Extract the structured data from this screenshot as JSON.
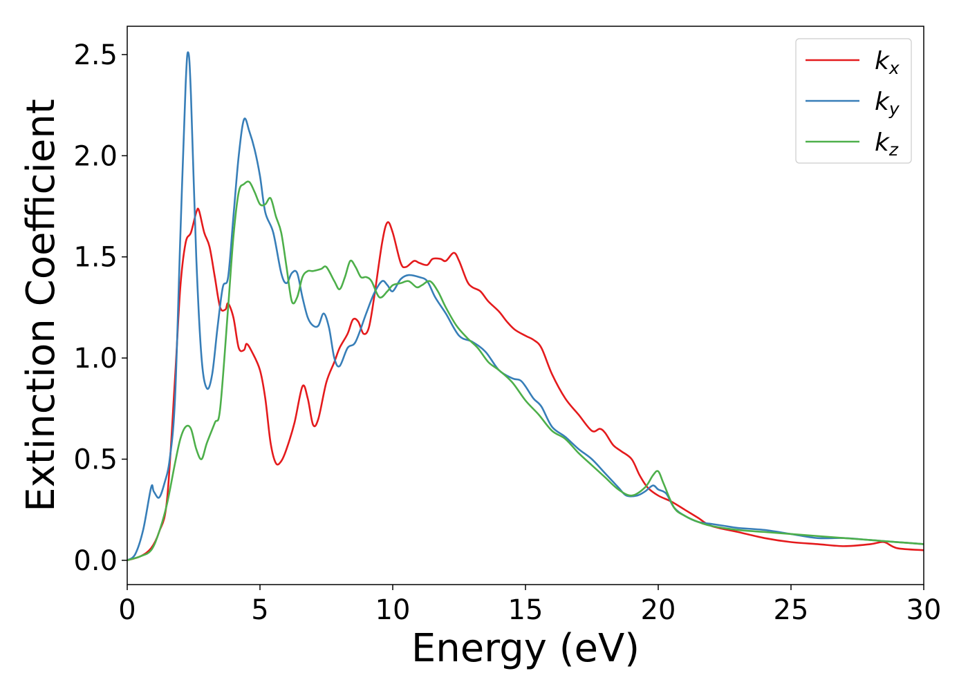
{
  "chart_data": {
    "type": "line",
    "title": "",
    "xlabel": "Energy (eV)",
    "ylabel": "Extinction Coefficient",
    "xlim": [
      0,
      30
    ],
    "ylim": [
      -0.12,
      2.64
    ],
    "xticks": [
      0,
      5,
      10,
      15,
      20,
      25,
      30
    ],
    "yticks": [
      0.0,
      0.5,
      1.0,
      1.5,
      2.0,
      2.5
    ],
    "grid": false,
    "legend_position": "top-right",
    "series": [
      {
        "name": "k_x",
        "name_base": "k",
        "name_sub": "x",
        "color": "#e41a1c",
        "points": [
          [
            0,
            0.0
          ],
          [
            0.5,
            0.02
          ],
          [
            0.9,
            0.06
          ],
          [
            1.2,
            0.14
          ],
          [
            1.5,
            0.3
          ],
          [
            1.8,
            0.9
          ],
          [
            2.0,
            1.35
          ],
          [
            2.2,
            1.57
          ],
          [
            2.4,
            1.62
          ],
          [
            2.6,
            1.72
          ],
          [
            2.7,
            1.73
          ],
          [
            2.9,
            1.62
          ],
          [
            3.1,
            1.55
          ],
          [
            3.3,
            1.4
          ],
          [
            3.5,
            1.25
          ],
          [
            3.7,
            1.24
          ],
          [
            3.8,
            1.27
          ],
          [
            4.0,
            1.2
          ],
          [
            4.2,
            1.05
          ],
          [
            4.4,
            1.04
          ],
          [
            4.5,
            1.07
          ],
          [
            4.7,
            1.03
          ],
          [
            5.0,
            0.94
          ],
          [
            5.2,
            0.8
          ],
          [
            5.4,
            0.58
          ],
          [
            5.6,
            0.48
          ],
          [
            5.8,
            0.49
          ],
          [
            6.0,
            0.55
          ],
          [
            6.3,
            0.68
          ],
          [
            6.6,
            0.86
          ],
          [
            6.8,
            0.8
          ],
          [
            7.0,
            0.67
          ],
          [
            7.2,
            0.7
          ],
          [
            7.5,
            0.88
          ],
          [
            7.8,
            0.98
          ],
          [
            8.0,
            1.05
          ],
          [
            8.3,
            1.12
          ],
          [
            8.5,
            1.19
          ],
          [
            8.7,
            1.18
          ],
          [
            8.9,
            1.12
          ],
          [
            9.1,
            1.15
          ],
          [
            9.3,
            1.3
          ],
          [
            9.6,
            1.57
          ],
          [
            9.8,
            1.67
          ],
          [
            10.0,
            1.62
          ],
          [
            10.3,
            1.47
          ],
          [
            10.5,
            1.45
          ],
          [
            10.8,
            1.48
          ],
          [
            11.0,
            1.47
          ],
          [
            11.3,
            1.46
          ],
          [
            11.5,
            1.49
          ],
          [
            11.8,
            1.49
          ],
          [
            12.0,
            1.48
          ],
          [
            12.3,
            1.52
          ],
          [
            12.5,
            1.48
          ],
          [
            12.8,
            1.38
          ],
          [
            13.0,
            1.35
          ],
          [
            13.3,
            1.33
          ],
          [
            13.6,
            1.28
          ],
          [
            14.0,
            1.23
          ],
          [
            14.3,
            1.18
          ],
          [
            14.6,
            1.14
          ],
          [
            15.0,
            1.11
          ],
          [
            15.3,
            1.09
          ],
          [
            15.6,
            1.05
          ],
          [
            16.0,
            0.92
          ],
          [
            16.5,
            0.8
          ],
          [
            17.0,
            0.72
          ],
          [
            17.5,
            0.64
          ],
          [
            17.8,
            0.65
          ],
          [
            18.0,
            0.63
          ],
          [
            18.3,
            0.57
          ],
          [
            18.6,
            0.54
          ],
          [
            19.0,
            0.5
          ],
          [
            19.3,
            0.42
          ],
          [
            19.6,
            0.36
          ],
          [
            20.0,
            0.32
          ],
          [
            20.5,
            0.29
          ],
          [
            21.0,
            0.25
          ],
          [
            21.5,
            0.21
          ],
          [
            22.0,
            0.17
          ],
          [
            23.0,
            0.14
          ],
          [
            24.0,
            0.11
          ],
          [
            25.0,
            0.09
          ],
          [
            26.0,
            0.08
          ],
          [
            27.0,
            0.07
          ],
          [
            28.0,
            0.08
          ],
          [
            28.5,
            0.09
          ],
          [
            29.0,
            0.06
          ],
          [
            30.0,
            0.05
          ]
        ]
      },
      {
        "name": "k_y",
        "name_base": "k",
        "name_sub": "y",
        "color": "#377eb8",
        "points": [
          [
            0,
            0.0
          ],
          [
            0.3,
            0.03
          ],
          [
            0.6,
            0.15
          ],
          [
            0.9,
            0.36
          ],
          [
            1.0,
            0.34
          ],
          [
            1.2,
            0.31
          ],
          [
            1.4,
            0.38
          ],
          [
            1.6,
            0.5
          ],
          [
            1.8,
            0.8
          ],
          [
            2.0,
            1.6
          ],
          [
            2.2,
            2.35
          ],
          [
            2.3,
            2.51
          ],
          [
            2.4,
            2.3
          ],
          [
            2.6,
            1.5
          ],
          [
            2.8,
            1.0
          ],
          [
            3.0,
            0.85
          ],
          [
            3.2,
            0.92
          ],
          [
            3.4,
            1.15
          ],
          [
            3.6,
            1.35
          ],
          [
            3.8,
            1.4
          ],
          [
            4.0,
            1.7
          ],
          [
            4.2,
            2.0
          ],
          [
            4.4,
            2.18
          ],
          [
            4.6,
            2.12
          ],
          [
            4.8,
            2.03
          ],
          [
            5.0,
            1.9
          ],
          [
            5.2,
            1.72
          ],
          [
            5.5,
            1.62
          ],
          [
            5.8,
            1.42
          ],
          [
            6.0,
            1.37
          ],
          [
            6.2,
            1.42
          ],
          [
            6.4,
            1.42
          ],
          [
            6.6,
            1.3
          ],
          [
            6.8,
            1.2
          ],
          [
            7.0,
            1.16
          ],
          [
            7.2,
            1.16
          ],
          [
            7.4,
            1.22
          ],
          [
            7.6,
            1.15
          ],
          [
            7.8,
            1.0
          ],
          [
            8.0,
            0.96
          ],
          [
            8.3,
            1.05
          ],
          [
            8.6,
            1.08
          ],
          [
            9.0,
            1.22
          ],
          [
            9.3,
            1.32
          ],
          [
            9.6,
            1.38
          ],
          [
            9.8,
            1.36
          ],
          [
            10.0,
            1.33
          ],
          [
            10.3,
            1.39
          ],
          [
            10.6,
            1.41
          ],
          [
            11.0,
            1.4
          ],
          [
            11.3,
            1.38
          ],
          [
            11.6,
            1.3
          ],
          [
            12.0,
            1.22
          ],
          [
            12.5,
            1.11
          ],
          [
            13.0,
            1.08
          ],
          [
            13.5,
            1.03
          ],
          [
            14.0,
            0.94
          ],
          [
            14.5,
            0.9
          ],
          [
            14.8,
            0.89
          ],
          [
            15.0,
            0.86
          ],
          [
            15.3,
            0.8
          ],
          [
            15.6,
            0.76
          ],
          [
            16.0,
            0.66
          ],
          [
            16.5,
            0.61
          ],
          [
            17.0,
            0.55
          ],
          [
            17.5,
            0.5
          ],
          [
            18.0,
            0.43
          ],
          [
            18.5,
            0.36
          ],
          [
            18.8,
            0.32
          ],
          [
            19.2,
            0.32
          ],
          [
            19.5,
            0.34
          ],
          [
            19.8,
            0.37
          ],
          [
            20.0,
            0.35
          ],
          [
            20.3,
            0.33
          ],
          [
            20.6,
            0.26
          ],
          [
            21.0,
            0.22
          ],
          [
            21.5,
            0.19
          ],
          [
            22.0,
            0.18
          ],
          [
            22.5,
            0.17
          ],
          [
            23.0,
            0.16
          ],
          [
            24.0,
            0.15
          ],
          [
            25.0,
            0.13
          ],
          [
            26.0,
            0.11
          ],
          [
            27.0,
            0.11
          ],
          [
            28.0,
            0.1
          ],
          [
            29.0,
            0.09
          ],
          [
            30.0,
            0.08
          ]
        ]
      },
      {
        "name": "k_z",
        "name_base": "k",
        "name_sub": "z",
        "color": "#4daf4a",
        "points": [
          [
            0,
            0.0
          ],
          [
            0.5,
            0.02
          ],
          [
            0.9,
            0.05
          ],
          [
            1.2,
            0.14
          ],
          [
            1.5,
            0.28
          ],
          [
            1.8,
            0.48
          ],
          [
            2.0,
            0.6
          ],
          [
            2.2,
            0.66
          ],
          [
            2.4,
            0.65
          ],
          [
            2.6,
            0.55
          ],
          [
            2.8,
            0.5
          ],
          [
            3.0,
            0.58
          ],
          [
            3.3,
            0.68
          ],
          [
            3.5,
            0.75
          ],
          [
            3.8,
            1.25
          ],
          [
            4.0,
            1.6
          ],
          [
            4.2,
            1.82
          ],
          [
            4.4,
            1.86
          ],
          [
            4.6,
            1.87
          ],
          [
            4.8,
            1.82
          ],
          [
            5.0,
            1.76
          ],
          [
            5.2,
            1.76
          ],
          [
            5.4,
            1.79
          ],
          [
            5.6,
            1.7
          ],
          [
            5.8,
            1.62
          ],
          [
            6.0,
            1.45
          ],
          [
            6.2,
            1.28
          ],
          [
            6.4,
            1.3
          ],
          [
            6.6,
            1.4
          ],
          [
            6.8,
            1.43
          ],
          [
            7.0,
            1.43
          ],
          [
            7.3,
            1.44
          ],
          [
            7.5,
            1.45
          ],
          [
            7.8,
            1.38
          ],
          [
            8.0,
            1.34
          ],
          [
            8.2,
            1.4
          ],
          [
            8.4,
            1.48
          ],
          [
            8.6,
            1.45
          ],
          [
            8.8,
            1.4
          ],
          [
            9.0,
            1.4
          ],
          [
            9.2,
            1.38
          ],
          [
            9.5,
            1.3
          ],
          [
            9.8,
            1.33
          ],
          [
            10.0,
            1.36
          ],
          [
            10.3,
            1.37
          ],
          [
            10.6,
            1.38
          ],
          [
            10.9,
            1.35
          ],
          [
            11.1,
            1.36
          ],
          [
            11.4,
            1.38
          ],
          [
            11.7,
            1.33
          ],
          [
            12.0,
            1.25
          ],
          [
            12.4,
            1.16
          ],
          [
            12.8,
            1.1
          ],
          [
            13.2,
            1.05
          ],
          [
            13.6,
            0.98
          ],
          [
            14.0,
            0.94
          ],
          [
            14.5,
            0.88
          ],
          [
            15.0,
            0.79
          ],
          [
            15.5,
            0.72
          ],
          [
            16.0,
            0.64
          ],
          [
            16.5,
            0.6
          ],
          [
            17.0,
            0.53
          ],
          [
            17.5,
            0.47
          ],
          [
            18.0,
            0.41
          ],
          [
            18.5,
            0.35
          ],
          [
            19.0,
            0.32
          ],
          [
            19.5,
            0.36
          ],
          [
            19.8,
            0.42
          ],
          [
            20.0,
            0.44
          ],
          [
            20.2,
            0.38
          ],
          [
            20.6,
            0.26
          ],
          [
            21.0,
            0.22
          ],
          [
            21.5,
            0.19
          ],
          [
            22.0,
            0.17
          ],
          [
            23.0,
            0.15
          ],
          [
            24.0,
            0.14
          ],
          [
            25.0,
            0.13
          ],
          [
            26.0,
            0.12
          ],
          [
            27.0,
            0.11
          ],
          [
            28.0,
            0.1
          ],
          [
            29.0,
            0.09
          ],
          [
            30.0,
            0.08
          ]
        ]
      }
    ]
  }
}
